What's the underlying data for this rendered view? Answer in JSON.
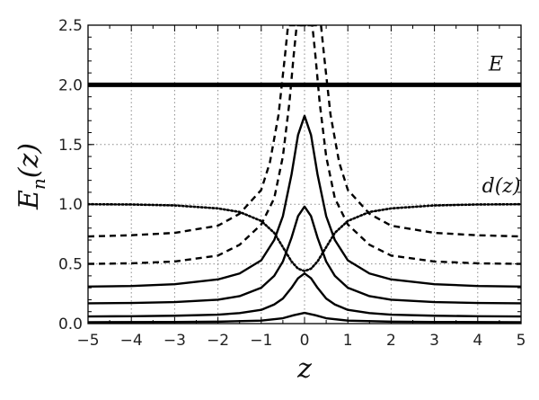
{
  "chart_data": {
    "type": "line",
    "xlabel": "z",
    "ylabel": "E_n(z)",
    "xlim": [
      -5,
      5
    ],
    "ylim": [
      0,
      2.5
    ],
    "grid": true,
    "grid_style": "dotted",
    "x_ticks": [
      "−5",
      "−4",
      "−3",
      "−2",
      "−1",
      "0",
      "1",
      "2",
      "3",
      "4",
      "5"
    ],
    "y_ticks": [
      "0.0",
      "0.5",
      "1.0",
      "1.5",
      "2.0",
      "2.5"
    ],
    "annotations": [
      {
        "text": "E",
        "x": 4.25,
        "y": 2.12
      },
      {
        "text": "d(z)",
        "x": 4.1,
        "y": 1.1
      }
    ],
    "series": [
      {
        "id": "energy-level",
        "style": "solid-thick",
        "color": "#000000",
        "points": [
          [
            -5,
            2.0
          ],
          [
            5,
            2.0
          ]
        ]
      },
      {
        "id": "d-curve",
        "style": "dotted",
        "color": "#000000",
        "points": [
          [
            -5,
            1.0
          ],
          [
            -4,
            0.998
          ],
          [
            -3,
            0.99
          ],
          [
            -2,
            0.965
          ],
          [
            -1.5,
            0.935
          ],
          [
            -1,
            0.86
          ],
          [
            -0.7,
            0.76
          ],
          [
            -0.5,
            0.64
          ],
          [
            -0.3,
            0.52
          ],
          [
            -0.15,
            0.46
          ],
          [
            0,
            0.44
          ],
          [
            0.15,
            0.46
          ],
          [
            0.3,
            0.52
          ],
          [
            0.5,
            0.64
          ],
          [
            0.7,
            0.76
          ],
          [
            1,
            0.86
          ],
          [
            1.5,
            0.935
          ],
          [
            2,
            0.965
          ],
          [
            3,
            0.99
          ],
          [
            4,
            0.998
          ],
          [
            5,
            1.0
          ]
        ]
      },
      {
        "id": "dashed-upper",
        "style": "dashed",
        "color": "#000000",
        "points": [
          [
            -5,
            0.73
          ],
          [
            -4,
            0.74
          ],
          [
            -3,
            0.76
          ],
          [
            -2,
            0.82
          ],
          [
            -1.5,
            0.92
          ],
          [
            -1,
            1.12
          ],
          [
            -0.8,
            1.35
          ],
          [
            -0.6,
            1.75
          ],
          [
            -0.45,
            2.25
          ],
          [
            -0.38,
            2.5
          ],
          [
            0.38,
            2.5
          ],
          [
            0.45,
            2.25
          ],
          [
            0.6,
            1.75
          ],
          [
            0.8,
            1.35
          ],
          [
            1,
            1.12
          ],
          [
            1.5,
            0.92
          ],
          [
            2,
            0.82
          ],
          [
            3,
            0.76
          ],
          [
            4,
            0.74
          ],
          [
            5,
            0.73
          ]
        ]
      },
      {
        "id": "dashed-lower",
        "style": "dashed",
        "color": "#000000",
        "points": [
          [
            -5,
            0.5
          ],
          [
            -4,
            0.505
          ],
          [
            -3,
            0.52
          ],
          [
            -2,
            0.57
          ],
          [
            -1.5,
            0.66
          ],
          [
            -1,
            0.83
          ],
          [
            -0.7,
            1.05
          ],
          [
            -0.5,
            1.4
          ],
          [
            -0.35,
            1.85
          ],
          [
            -0.25,
            2.25
          ],
          [
            -0.18,
            2.5
          ],
          [
            0.18,
            2.5
          ],
          [
            0.25,
            2.25
          ],
          [
            0.35,
            1.85
          ],
          [
            0.5,
            1.4
          ],
          [
            0.7,
            1.05
          ],
          [
            1,
            0.83
          ],
          [
            1.5,
            0.66
          ],
          [
            2,
            0.57
          ],
          [
            3,
            0.52
          ],
          [
            4,
            0.505
          ],
          [
            5,
            0.5
          ]
        ]
      },
      {
        "id": "solid-peak-1.74",
        "style": "solid",
        "color": "#000000",
        "points": [
          [
            -5,
            0.31
          ],
          [
            -4,
            0.315
          ],
          [
            -3,
            0.33
          ],
          [
            -2,
            0.37
          ],
          [
            -1.5,
            0.42
          ],
          [
            -1,
            0.53
          ],
          [
            -0.7,
            0.7
          ],
          [
            -0.5,
            0.9
          ],
          [
            -0.3,
            1.25
          ],
          [
            -0.15,
            1.58
          ],
          [
            0,
            1.74
          ],
          [
            0.15,
            1.58
          ],
          [
            0.3,
            1.25
          ],
          [
            0.5,
            0.9
          ],
          [
            0.7,
            0.7
          ],
          [
            1,
            0.53
          ],
          [
            1.5,
            0.42
          ],
          [
            2,
            0.37
          ],
          [
            3,
            0.33
          ],
          [
            4,
            0.315
          ],
          [
            5,
            0.31
          ]
        ]
      },
      {
        "id": "solid-peak-0.98",
        "style": "solid",
        "color": "#000000",
        "points": [
          [
            -5,
            0.17
          ],
          [
            -4,
            0.173
          ],
          [
            -3,
            0.18
          ],
          [
            -2,
            0.2
          ],
          [
            -1.5,
            0.23
          ],
          [
            -1,
            0.3
          ],
          [
            -0.7,
            0.4
          ],
          [
            -0.5,
            0.52
          ],
          [
            -0.3,
            0.72
          ],
          [
            -0.15,
            0.9
          ],
          [
            0,
            0.98
          ],
          [
            0.15,
            0.9
          ],
          [
            0.3,
            0.72
          ],
          [
            0.5,
            0.52
          ],
          [
            0.7,
            0.4
          ],
          [
            1,
            0.3
          ],
          [
            1.5,
            0.23
          ],
          [
            2,
            0.2
          ],
          [
            3,
            0.18
          ],
          [
            4,
            0.173
          ],
          [
            5,
            0.17
          ]
        ]
      },
      {
        "id": "solid-peak-0.42",
        "style": "solid",
        "color": "#000000",
        "points": [
          [
            -5,
            0.06
          ],
          [
            -4,
            0.062
          ],
          [
            -3,
            0.066
          ],
          [
            -2,
            0.075
          ],
          [
            -1.5,
            0.088
          ],
          [
            -1,
            0.115
          ],
          [
            -0.7,
            0.16
          ],
          [
            -0.5,
            0.21
          ],
          [
            -0.3,
            0.3
          ],
          [
            -0.15,
            0.38
          ],
          [
            0,
            0.42
          ],
          [
            0.15,
            0.38
          ],
          [
            0.3,
            0.3
          ],
          [
            0.5,
            0.21
          ],
          [
            0.7,
            0.16
          ],
          [
            1,
            0.115
          ],
          [
            1.5,
            0.088
          ],
          [
            2,
            0.075
          ],
          [
            3,
            0.066
          ],
          [
            4,
            0.062
          ],
          [
            5,
            0.06
          ]
        ]
      },
      {
        "id": "solid-peak-0.09",
        "style": "solid",
        "color": "#000000",
        "points": [
          [
            -5,
            0.012
          ],
          [
            -3,
            0.014
          ],
          [
            -2,
            0.016
          ],
          [
            -1,
            0.025
          ],
          [
            -0.5,
            0.045
          ],
          [
            -0.25,
            0.07
          ],
          [
            0,
            0.09
          ],
          [
            0.25,
            0.07
          ],
          [
            0.5,
            0.045
          ],
          [
            1,
            0.025
          ],
          [
            2,
            0.016
          ],
          [
            3,
            0.014
          ],
          [
            5,
            0.012
          ]
        ]
      }
    ]
  }
}
